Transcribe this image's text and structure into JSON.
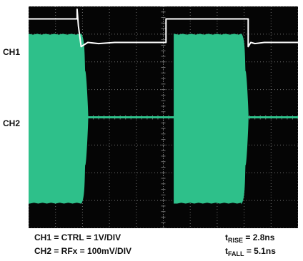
{
  "chart_data": {
    "type": "line",
    "channels": [
      {
        "label": "CH1",
        "trace_color": "#ffffff",
        "ground_div": -4.3
      },
      {
        "label": "CH2",
        "trace_color": "#2ec08a",
        "ground_div": 0
      }
    ],
    "grid": {
      "divisions_x": 10,
      "divisions_y": 8,
      "subdivisions": 5,
      "grid_on": true
    },
    "background_color": "#050505",
    "grid_color": "#6f6f6f",
    "ch1_trace": {
      "x": [
        0.0,
        1.8,
        1.8,
        1.85,
        1.95,
        2.2,
        2.6,
        3.2,
        4.6,
        5.1,
        5.1,
        5.2,
        5.35,
        5.65,
        6.1,
        6.7,
        8.15,
        8.15,
        8.25,
        8.4,
        8.75,
        9.4,
        10.0
      ],
      "y": [
        3.55,
        3.55,
        3.9,
        3.3,
        2.55,
        2.7,
        2.66,
        2.7,
        2.7,
        2.7,
        3.55,
        3.55,
        3.55,
        3.55,
        3.55,
        3.55,
        3.55,
        2.55,
        2.7,
        2.66,
        2.7,
        2.7,
        2.7
      ]
    },
    "ch2_bursts": [
      {
        "full_start": 0.0,
        "full_end": 1.95,
        "decay_end": 2.2,
        "top": 3.0,
        "bottom": -3.1
      },
      {
        "full_start": 5.4,
        "full_end": 7.9,
        "decay_end": 8.15,
        "top": 3.0,
        "bottom": -3.1
      }
    ],
    "ch2_baseline": 0
  },
  "labels": {
    "ch1": "CH1",
    "ch2": "CH2",
    "foot_left_1": "CH1 = CTRL = 1V/DIV",
    "foot_left_2": "CH2 = RFx = 100mV/DIV",
    "rise_t": "t",
    "rise_sub": "RISE",
    "rise_value": " = 2.8ns",
    "fall_t": "t",
    "fall_sub": "FALL",
    "fall_value": " = 5.1ns"
  }
}
